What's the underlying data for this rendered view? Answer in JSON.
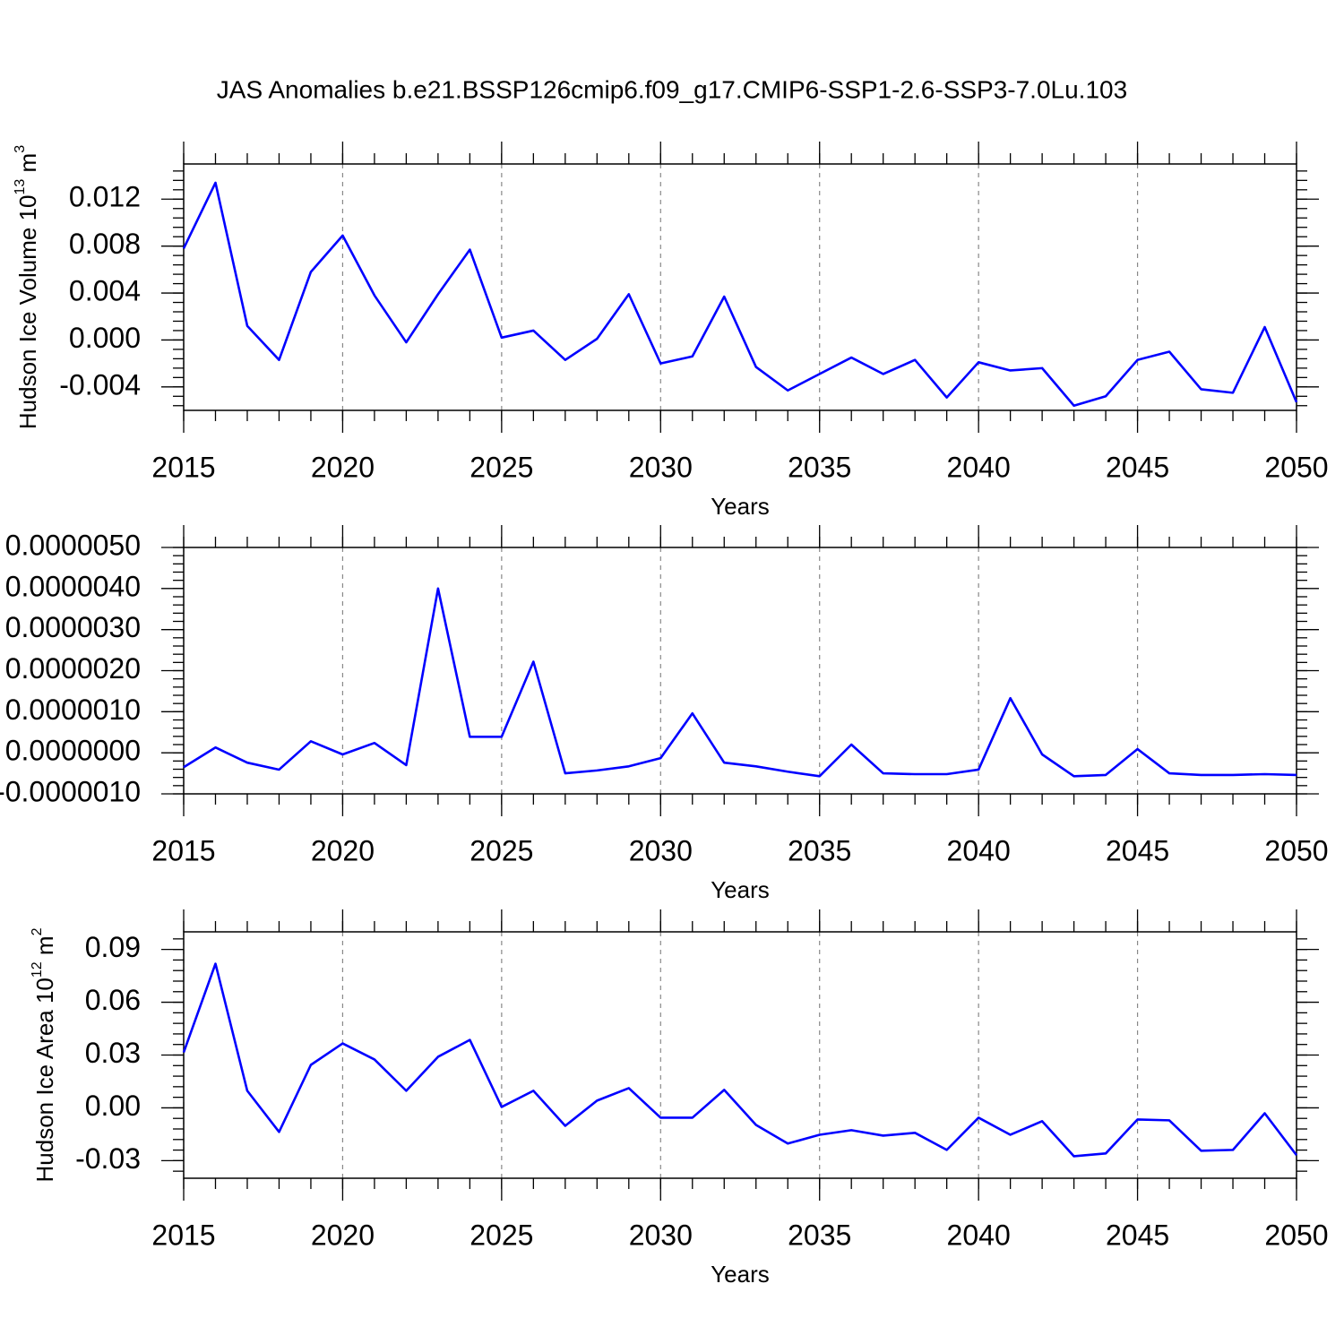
{
  "chart_data": [
    {
      "type": "line",
      "title": "JAS Anomalies b.e21.BSSP126cmip6.f09_g17.CMIP6-SSP1-2.6-SSP3-7.0Lu.103",
      "ylabel": {
        "text": "Hudson Ice Volume 10",
        "exp": "13",
        "unit": " m",
        "unit_exp": "3"
      },
      "xlabel": "Years",
      "color": "#0000ff",
      "x_grid": true,
      "x": [
        2015,
        2016,
        2017,
        2018,
        2019,
        2020,
        2021,
        2022,
        2023,
        2024,
        2025,
        2026,
        2027,
        2028,
        2029,
        2030,
        2031,
        2032,
        2033,
        2034,
        2035,
        2036,
        2037,
        2038,
        2039,
        2040,
        2041,
        2042,
        2043,
        2044,
        2045,
        2046,
        2047,
        2048,
        2049,
        2050
      ],
      "values": [
        0.0078,
        0.0134,
        0.0012,
        -0.0017,
        0.0058,
        0.0089,
        0.0038,
        -0.0002,
        0.0039,
        0.0077,
        0.0002,
        0.0008,
        -0.0017,
        0.0001,
        0.0039,
        -0.002,
        -0.0014,
        0.0037,
        -0.0023,
        -0.0043,
        -0.0029,
        -0.0015,
        -0.0029,
        -0.0017,
        -0.0049,
        -0.0019,
        -0.0026,
        -0.0024,
        -0.0056,
        -0.0048,
        -0.0017,
        -0.001,
        -0.0042,
        -0.0045,
        0.0011,
        -0.0053
      ],
      "xlim": [
        2015,
        2050
      ],
      "xticks": [
        2015,
        2020,
        2025,
        2030,
        2035,
        2040,
        2045,
        2050
      ],
      "ylim": [
        -0.006,
        0.015
      ],
      "yticks": [
        0.012,
        0.008,
        0.004,
        {
          "value": 0,
          "label": "0.000"
        },
        -0.004
      ]
    },
    {
      "type": "line",
      "xlabel": "Years",
      "color": "#0000ff",
      "x_grid": true,
      "x": [
        2015,
        2016,
        2017,
        2018,
        2019,
        2020,
        2021,
        2022,
        2023,
        2024,
        2025,
        2026,
        2027,
        2028,
        2029,
        2030,
        2031,
        2032,
        2033,
        2034,
        2035,
        2036,
        2037,
        2038,
        2039,
        2040,
        2041,
        2042,
        2043,
        2044,
        2045,
        2046,
        2047,
        2048,
        2049,
        2050
      ],
      "values": [
        -3.5e-07,
        1.3e-07,
        -2.4e-07,
        -4.1e-07,
        2.8e-07,
        -4e-08,
        2.4e-07,
        -3e-07,
        4e-06,
        3.9e-07,
        3.9e-07,
        2.22e-06,
        -5e-07,
        -4.3e-07,
        -3.3e-07,
        -1.3e-07,
        9.6e-07,
        -2.4e-07,
        -3.3e-07,
        -4.6e-07,
        -5.7e-07,
        2e-07,
        -5e-07,
        -5.2e-07,
        -5.2e-07,
        -4.1e-07,
        1.33e-06,
        -4e-08,
        -5.7e-07,
        -5.4e-07,
        9e-08,
        -5e-07,
        -5.4e-07,
        -5.4e-07,
        -5.2e-07,
        -5.4e-07
      ],
      "xlim": [
        2015,
        2050
      ],
      "xticks": [
        2015,
        2020,
        2025,
        2030,
        2035,
        2040,
        2045,
        2050
      ],
      "ylim": [
        -1e-06,
        5e-06
      ],
      "yticks": [
        {
          "value": 5e-06,
          "label": "0.0000050"
        },
        {
          "value": 4e-06,
          "label": "0.0000040"
        },
        {
          "value": 3e-06,
          "label": "0.0000030"
        },
        {
          "value": 2e-06,
          "label": "0.0000020"
        },
        {
          "value": 1e-06,
          "label": "0.0000010"
        },
        {
          "value": 0,
          "label": "0.0000000"
        },
        {
          "value": -1e-06,
          "label": "-0.0000010"
        }
      ]
    },
    {
      "type": "line",
      "ylabel": {
        "text": "Hudson Ice Area 10",
        "exp": "12",
        "unit": " m",
        "unit_exp": "2"
      },
      "xlabel": "Years",
      "color": "#0000ff",
      "x_grid": true,
      "x": [
        2015,
        2016,
        2017,
        2018,
        2019,
        2020,
        2021,
        2022,
        2023,
        2024,
        2025,
        2026,
        2027,
        2028,
        2029,
        2030,
        2031,
        2032,
        2033,
        2034,
        2035,
        2036,
        2037,
        2038,
        2039,
        2040,
        2041,
        2042,
        2043,
        2044,
        2045,
        2046,
        2047,
        2048,
        2049,
        2050
      ],
      "values": [
        0.0315,
        0.0819,
        0.0097,
        -0.0137,
        0.0244,
        0.0366,
        0.0275,
        0.0097,
        0.029,
        0.0386,
        0.0005,
        0.0097,
        -0.0102,
        0.0041,
        0.0112,
        -0.0056,
        -0.0056,
        0.0102,
        -0.0097,
        -0.0203,
        -0.0153,
        -0.0127,
        -0.0158,
        -0.0142,
        -0.0239,
        -0.0056,
        -0.0153,
        -0.0076,
        -0.0275,
        -0.0259,
        -0.0066,
        -0.0071,
        -0.0244,
        -0.0239,
        -0.0031,
        -0.0269
      ],
      "xlim": [
        2015,
        2050
      ],
      "xticks": [
        2015,
        2020,
        2025,
        2030,
        2035,
        2040,
        2045,
        2050
      ],
      "ylim": [
        -0.04,
        0.1
      ],
      "yticks": [
        0.09,
        0.06,
        0.03,
        {
          "value": 0,
          "label": "0.00"
        },
        -0.03
      ]
    }
  ]
}
